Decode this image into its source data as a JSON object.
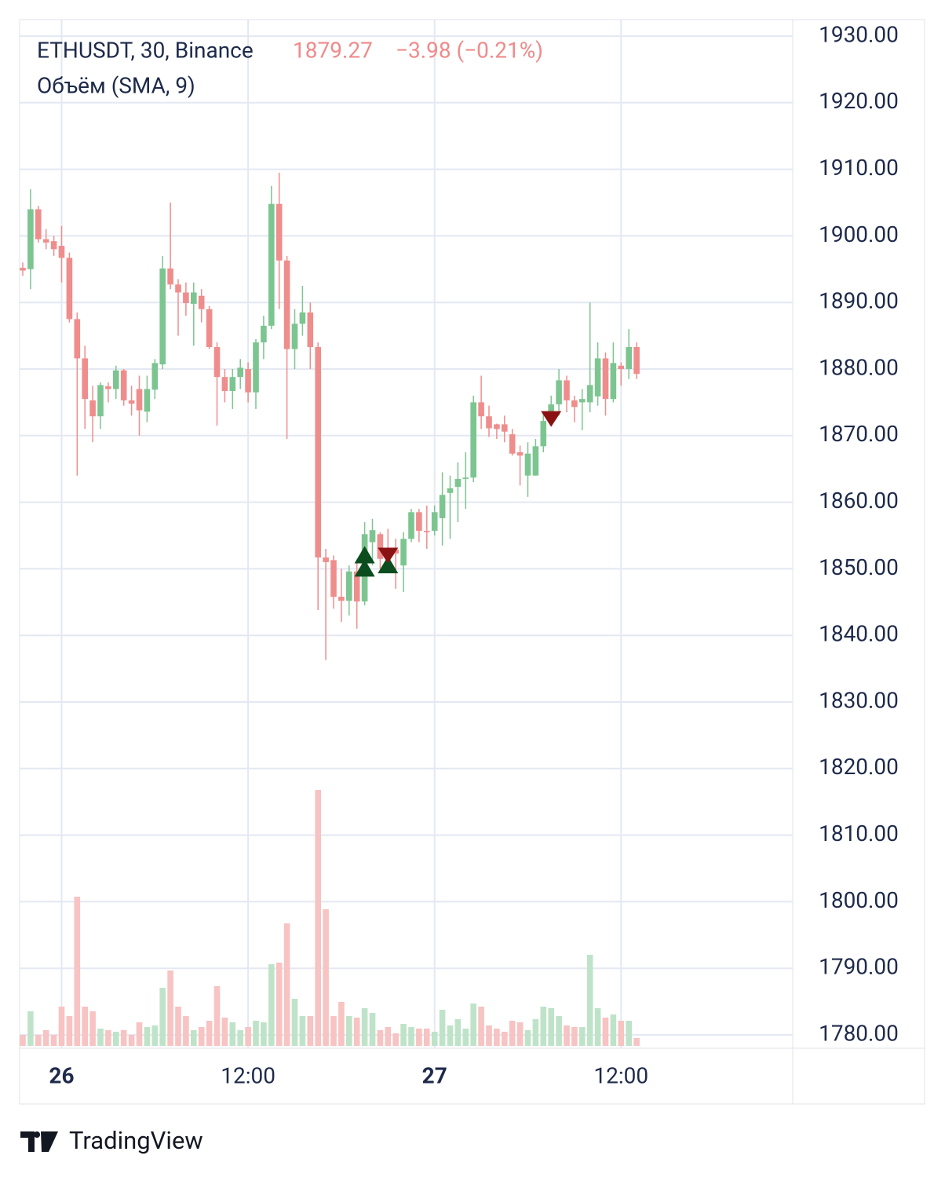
{
  "chart_data": {
    "type": "candlestick",
    "legend": {
      "symbol": "ETHUSDT, 30, Binance",
      "last": "1879.27",
      "change": "−3.98 (−0.21%)",
      "indicator": "Объём (SMA, 9)"
    },
    "brand": "TradingView",
    "categories": [
      null,
      null,
      null,
      null,
      null,
      "26",
      null,
      null,
      null,
      null,
      null,
      null,
      null,
      null,
      null,
      null,
      null,
      null,
      null,
      null,
      null,
      null,
      null,
      null,
      null,
      null,
      null,
      null,
      null,
      "12:00",
      null,
      null,
      null,
      null,
      null,
      null,
      null,
      null,
      null,
      null,
      null,
      null,
      null,
      null,
      null,
      null,
      null,
      null,
      null,
      null,
      null,
      null,
      null,
      "27",
      null,
      null,
      null,
      null,
      null,
      null,
      null,
      null,
      null,
      null,
      null,
      null,
      null,
      null,
      null,
      null,
      null,
      null,
      null,
      null,
      null,
      null,
      null,
      "12:00",
      null,
      null
    ],
    "open": [
      1895.2,
      1895,
      1904,
      1899.5,
      1899.2,
      1898.5,
      1896.7,
      1887.5,
      1881.6,
      1875.3,
      1872.9,
      1877.4,
      1877,
      1879.8,
      1875.3,
      1877,
      1873.6,
      1876.9,
      1880.7,
      1895.1,
      1892.7,
      1891.5,
      1889.8,
      1891,
      1889,
      1883.3,
      1878.8,
      1876.7,
      1878.8,
      1880,
      1876.5,
      1884,
      1886.5,
      1904.8,
      1896.3,
      1883,
      1886.8,
      1888.5,
      1883.3,
      1851.7,
      1851.3,
      1845.8,
      1845.2,
      1849.6,
      1845.1,
      1854,
      1855.2,
      1852.9,
      1852.9,
      1850.5,
      1854.5,
      1858.5,
      1855.7,
      1855.7,
      1857.6,
      1861.4,
      1862.3,
      1863.5,
      1863.7,
      1875,
      1872.9,
      1871.7,
      1871.7,
      1870.2,
      1867.5,
      1864,
      1864,
      1868.4,
      1872.2,
      1874.7,
      1878.3,
      1875.3,
      1875,
      1875,
      1875.9,
      1881.6,
      1875.5,
      1880.5,
      1880,
      1883.3
    ],
    "high": [
      1896,
      1907,
      1904.5,
      1901,
      1900,
      1901.5,
      1897.5,
      1888.5,
      1883.5,
      1877.5,
      1878,
      1878,
      1880.5,
      1880,
      1877.5,
      1879,
      1879,
      1881.5,
      1897,
      1905,
      1893.5,
      1893,
      1893,
      1892,
      1889.5,
      1884,
      1880,
      1880,
      1881.5,
      1881,
      1884.5,
      1888,
      1907.5,
      1909.5,
      1897,
      1889,
      1892.5,
      1890,
      1884,
      1853,
      1852,
      1850,
      1850.5,
      1851,
      1857,
      1857.5,
      1855.5,
      1856,
      1854.5,
      1855.5,
      1859,
      1859,
      1859.5,
      1859.5,
      1864.5,
      1864,
      1866,
      1867.5,
      1876,
      1879,
      1874.5,
      1871.8,
      1873,
      1871,
      1868.5,
      1869,
      1869.5,
      1873.5,
      1876,
      1880,
      1879,
      1876,
      1877,
      1890,
      1884,
      1882.5,
      1884,
      1881,
      1886,
      1884
    ],
    "low": [
      1894,
      1892,
      1899,
      1898,
      1897,
      1893,
      1887,
      1864,
      1871,
      1869,
      1871,
      1875,
      1875.5,
      1874.5,
      1873,
      1870,
      1872,
      1875.5,
      1880,
      1892,
      1885,
      1888,
      1883.5,
      1887,
      1883,
      1871.5,
      1875,
      1874,
      1877,
      1875,
      1874,
      1881.5,
      1886,
      1889,
      1869.5,
      1880,
      1885,
      1880,
      1843.8,
      1836.3,
      1844,
      1842,
      1843,
      1841,
      1844.5,
      1850.5,
      1850,
      1850,
      1847,
      1846.5,
      1854,
      1854,
      1853,
      1855,
      1853.5,
      1854.5,
      1857,
      1859,
      1863,
      1871,
      1869.8,
      1869.5,
      1869,
      1867,
      1862.5,
      1860.8,
      1864,
      1867.5,
      1871.5,
      1873,
      1873.5,
      1872,
      1870.8,
      1873.5,
      1874.5,
      1873,
      1875,
      1877.5,
      1878.5,
      1878.5
    ],
    "close": [
      1894.8,
      1904,
      1899.5,
      1899,
      1898,
      1896.7,
      1887.5,
      1881.6,
      1875.5,
      1872.9,
      1877.6,
      1877,
      1879.8,
      1875.3,
      1874.8,
      1873.8,
      1877,
      1880.9,
      1895.1,
      1892.7,
      1891.5,
      1889.9,
      1891.5,
      1889,
      1883.3,
      1878.8,
      1876.7,
      1878.8,
      1880.2,
      1876.5,
      1884,
      1886.5,
      1904.8,
      1896.3,
      1883,
      1886.8,
      1888.5,
      1883.3,
      1851.7,
      1851,
      1845.8,
      1845.2,
      1849.6,
      1845.1,
      1855.2,
      1855.8,
      1851.5,
      1851.9,
      1852.3,
      1854.5,
      1858.5,
      1855.7,
      1855.5,
      1858.5,
      1861.1,
      1862.1,
      1863.5,
      1863.7,
      1875,
      1872.9,
      1871.1,
      1871,
      1870.6,
      1867.3,
      1867,
      1867.3,
      1868.4,
      1872.2,
      1874.7,
      1878.3,
      1875.3,
      1874.3,
      1875.5,
      1877.6,
      1881.6,
      1875.5,
      1880.9,
      1880,
      1883.3,
      1879.27
    ],
    "volume": [
      14,
      44,
      14,
      20,
      14,
      50,
      38,
      190,
      50,
      44,
      22,
      20,
      18,
      20,
      14,
      30,
      24,
      26,
      74,
      96,
      50,
      38,
      20,
      24,
      32,
      76,
      36,
      30,
      20,
      24,
      32,
      30,
      104,
      106,
      156,
      60,
      38,
      38,
      326,
      174,
      38,
      56,
      38,
      36,
      48,
      42,
      20,
      24,
      16,
      28,
      24,
      22,
      22,
      18,
      46,
      26,
      34,
      22,
      54,
      50,
      26,
      22,
      18,
      32,
      30,
      20,
      34,
      50,
      48,
      38,
      26,
      24,
      24,
      116,
      48,
      36,
      40,
      32,
      32,
      10
    ],
    "up_markers": [
      {
        "x": 44,
        "y": 1850
      },
      {
        "x": 44,
        "y": 1852
      },
      {
        "x": 47,
        "y": 1850.5
      }
    ],
    "down_markers": [
      {
        "x": 47,
        "y": 1852
      },
      {
        "x": 68,
        "y": 1872.5
      }
    ],
    "ylim": [
      1780,
      1930
    ],
    "yticks": [
      {
        "value": 1930,
        "label": "1930.00"
      },
      {
        "value": 1920,
        "label": "1920.00"
      },
      {
        "value": 1910,
        "label": "1910.00"
      },
      {
        "value": 1900,
        "label": "1900.00"
      },
      {
        "value": 1890,
        "label": "1890.00"
      },
      {
        "value": 1880,
        "label": "1880.00"
      },
      {
        "value": 1870,
        "label": "1870.00"
      },
      {
        "value": 1860,
        "label": "1860.00"
      },
      {
        "value": 1850,
        "label": "1850.00"
      },
      {
        "value": 1840,
        "label": "1840.00"
      },
      {
        "value": 1830,
        "label": "1830.00"
      },
      {
        "value": 1820,
        "label": "1820.00"
      },
      {
        "value": 1810,
        "label": "1810.00"
      },
      {
        "value": 1800,
        "label": "1800.00"
      },
      {
        "value": 1790,
        "label": "1790.00"
      },
      {
        "value": 1780,
        "label": "1780.00"
      }
    ],
    "grid": true,
    "up_color": "#7cc591",
    "down_color": "#ef8d8d",
    "volume_up_color": "#bfe3c9",
    "volume_down_color": "#f7c3c3",
    "up_marker_color": "#0b4d1e",
    "down_marker_color": "#8a1212",
    "last_color": "#f08a8a"
  }
}
